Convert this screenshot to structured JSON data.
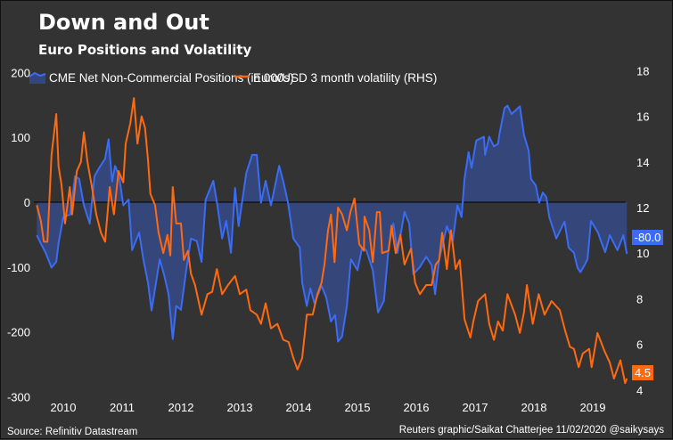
{
  "title": "Down and Out",
  "subtitle": "Euro Positions and Volatility",
  "source": "Source: Refinitiv Datastream",
  "credit": "Reuters graphic/Saikat Chatterjee 11/02/2020 @saikysays",
  "colors": {
    "background": "#333333",
    "positions_line": "#3a6cf4",
    "positions_fill": "#34467a",
    "volatility_line": "#ff6a10",
    "zero_line": "#000000"
  },
  "chart_data": {
    "type": "line",
    "x_unit": "year",
    "x_ticks": [
      "2010",
      "2011",
      "2012",
      "2013",
      "2014",
      "2015",
      "2016",
      "2017",
      "2018",
      "2019"
    ],
    "xlim": [
      2010.0,
      2020.1
    ],
    "y_left": {
      "ticks": [
        "200",
        "100",
        "0",
        "-100",
        "-200",
        "-300"
      ],
      "lim": [
        -300,
        200
      ]
    },
    "y_right": {
      "ticks": [
        "18",
        "16",
        "14",
        "12",
        "10",
        "8",
        "6",
        "4"
      ],
      "lim": [
        4,
        18
      ]
    },
    "grid": false,
    "legend_placement": "top",
    "series": [
      {
        "name": "CME Net Non-Commercial Positions (in 000s)",
        "axis": "left",
        "style": "area-line",
        "last_value_label": "-80.0",
        "x": [
          2010.05,
          2010.12,
          2010.2,
          2010.3,
          2010.38,
          2010.42,
          2010.5,
          2010.62,
          2010.7,
          2010.77,
          2010.85,
          2010.95,
          2011.03,
          2011.11,
          2011.21,
          2011.27,
          2011.33,
          2011.38,
          2011.45,
          2011.52,
          2011.61,
          2011.67,
          2011.79,
          2011.86,
          2011.94,
          2012.0,
          2012.06,
          2012.14,
          2012.21,
          2012.29,
          2012.36,
          2012.42,
          2012.5,
          2012.58,
          2012.67,
          2012.77,
          2012.85,
          2012.92,
          2013.05,
          2013.12,
          2013.2,
          2013.27,
          2013.35,
          2013.42,
          2013.48,
          2013.61,
          2013.71,
          2013.79,
          2013.86,
          2013.94,
          2014.03,
          2014.17,
          2014.24,
          2014.32,
          2014.41,
          2014.52,
          2014.56,
          2014.64,
          2014.7,
          2014.77,
          2014.89,
          2014.97,
          2015.05,
          2015.12,
          2015.17,
          2015.24,
          2015.32,
          2015.39,
          2015.5,
          2015.58,
          2015.65,
          2015.76,
          2015.85,
          2015.95,
          2016.03,
          2016.11,
          2016.18,
          2016.3,
          2016.38,
          2016.45,
          2016.56,
          2016.67,
          2016.76,
          2016.82,
          2016.89,
          2017.02,
          2017.12,
          2017.2,
          2017.27,
          2017.32,
          2017.39,
          2017.44,
          2017.52,
          2017.65,
          2017.67,
          2017.74,
          2017.82,
          2017.89,
          2017.92,
          2018.0,
          2018.05,
          2018.12,
          2018.18,
          2018.26,
          2018.33,
          2018.41,
          2018.45,
          2018.53,
          2018.59,
          2018.65,
          2018.71,
          2018.76,
          2018.88,
          2019.02,
          2019.09,
          2019.18,
          2019.24,
          2019.29,
          2019.36,
          2019.41,
          2019.47,
          2019.59,
          2019.64,
          2019.71,
          2019.79,
          2019.92,
          2020.02,
          2020.08
        ],
        "values": [
          -51,
          -64,
          -78,
          -101,
          -92,
          -63,
          -23,
          -19,
          40,
          36,
          -5,
          -33,
          40,
          53,
          67,
          97,
          32,
          56,
          40,
          -5,
          4,
          -74,
          -47,
          -88,
          -124,
          -167,
          -133,
          -88,
          -111,
          -142,
          -211,
          -160,
          -166,
          -111,
          -56,
          -60,
          -92,
          4,
          33,
          -5,
          -56,
          -29,
          -78,
          22,
          -37,
          45,
          73,
          73,
          -1,
          33,
          -5,
          56,
          32,
          -1,
          -56,
          -70,
          -124,
          -160,
          -133,
          -156,
          -129,
          -147,
          -184,
          -174,
          -215,
          -207,
          -160,
          -88,
          -105,
          -70,
          -74,
          -105,
          -170,
          -152,
          -70,
          -33,
          -78,
          -15,
          -33,
          -111,
          -100,
          -84,
          -97,
          -142,
          -88,
          -37,
          -60,
          -5,
          -23,
          36,
          77,
          53,
          95,
          101,
          73,
          101,
          86,
          90,
          108,
          145,
          149,
          136,
          141,
          148,
          104,
          79,
          36,
          26,
          -1,
          15,
          8,
          -23,
          -56,
          -30,
          -70,
          -78,
          -101,
          -108,
          -97,
          -88,
          -29,
          -47,
          -60,
          -77,
          -51,
          -74,
          -51,
          -80
        ]
      },
      {
        "name": "Euro/USD 3 month volatility (RHS)",
        "axis": "right",
        "style": "line",
        "last_value_label": "4.5",
        "x": [
          2010.05,
          2010.12,
          2010.17,
          2010.23,
          2010.3,
          2010.38,
          2010.42,
          2010.47,
          2010.53,
          2010.61,
          2010.65,
          2010.73,
          2010.8,
          2010.85,
          2010.91,
          2010.98,
          2011.06,
          2011.14,
          2011.21,
          2011.29,
          2011.36,
          2011.44,
          2011.52,
          2011.56,
          2011.64,
          2011.7,
          2011.76,
          2011.83,
          2011.89,
          2011.94,
          2011.98,
          2012.06,
          2012.12,
          2012.2,
          2012.27,
          2012.32,
          2012.36,
          2012.42,
          2012.5,
          2012.55,
          2012.62,
          2012.67,
          2012.74,
          2012.85,
          2012.95,
          2013.03,
          2013.11,
          2013.2,
          2013.3,
          2013.42,
          2013.5,
          2013.61,
          2013.68,
          2013.79,
          2013.86,
          2013.94,
          2014.03,
          2014.14,
          2014.24,
          2014.33,
          2014.41,
          2014.48,
          2014.56,
          2014.64,
          2014.74,
          2014.82,
          2014.89,
          2014.94,
          2015.0,
          2015.05,
          2015.11,
          2015.17,
          2015.24,
          2015.32,
          2015.38,
          2015.45,
          2015.53,
          2015.61,
          2015.62,
          2015.7,
          2015.76,
          2015.83,
          2015.88,
          2015.92,
          2016.03,
          2016.08,
          2016.15,
          2016.23,
          2016.3,
          2016.41,
          2016.48,
          2016.56,
          2016.67,
          2016.76,
          2016.83,
          2016.89,
          2016.94,
          2017.02,
          2017.09,
          2017.17,
          2017.24,
          2017.32,
          2017.42,
          2017.47,
          2017.55,
          2017.67,
          2017.74,
          2017.82,
          2017.89,
          2017.97,
          2018.05,
          2018.18,
          2018.26,
          2018.33,
          2018.38,
          2018.48,
          2018.58,
          2018.68,
          2018.8,
          2018.94,
          2019.03,
          2019.11,
          2019.18,
          2019.26,
          2019.33,
          2019.44,
          2019.48,
          2019.58,
          2019.7,
          2019.79,
          2019.86,
          2019.97,
          2020.05,
          2020.08
        ],
        "values": [
          12.1,
          11.4,
          10.5,
          10.5,
          14.3,
          16.1,
          13.8,
          13.0,
          11.3,
          12.9,
          11.7,
          13.6,
          14.0,
          15.3,
          14.0,
          13.0,
          11.7,
          10.9,
          10.5,
          12.9,
          11.7,
          13.6,
          13.1,
          14.8,
          15.7,
          16.8,
          14.8,
          16.0,
          15.5,
          14.1,
          12.6,
          12.1,
          10.9,
          10.0,
          10.8,
          9.9,
          12.9,
          11.3,
          11.3,
          9.7,
          10.1,
          9.1,
          8.6,
          7.3,
          8.2,
          8.3,
          9.3,
          8.2,
          8.6,
          9.0,
          8.2,
          8.4,
          7.5,
          7.3,
          6.9,
          7.8,
          6.7,
          6.9,
          6.2,
          6.1,
          5.4,
          4.9,
          5.4,
          7.3,
          7.3,
          8.2,
          8.7,
          9.5,
          11.0,
          11.7,
          9.6,
          12.0,
          11.7,
          11.0,
          11.8,
          12.4,
          10.4,
          10.1,
          11.6,
          11.0,
          9.6,
          11.8,
          11.8,
          10.0,
          10.1,
          11.2,
          10.0,
          10.8,
          9.5,
          10.2,
          8.7,
          8.2,
          8.6,
          8.6,
          9.5,
          9.7,
          10.9,
          9.3,
          11.0,
          9.3,
          9.7,
          7.1,
          6.3,
          7.0,
          7.9,
          8.2,
          6.9,
          6.2,
          7.0,
          6.6,
          8.2,
          7.3,
          6.5,
          7.4,
          8.6,
          6.9,
          8.2,
          7.3,
          7.9,
          7.5,
          6.6,
          5.9,
          5.8,
          5.0,
          5.6,
          5.8,
          5.0,
          6.5,
          5.7,
          5.2,
          4.5,
          5.3,
          4.3,
          4.5
        ]
      }
    ]
  }
}
